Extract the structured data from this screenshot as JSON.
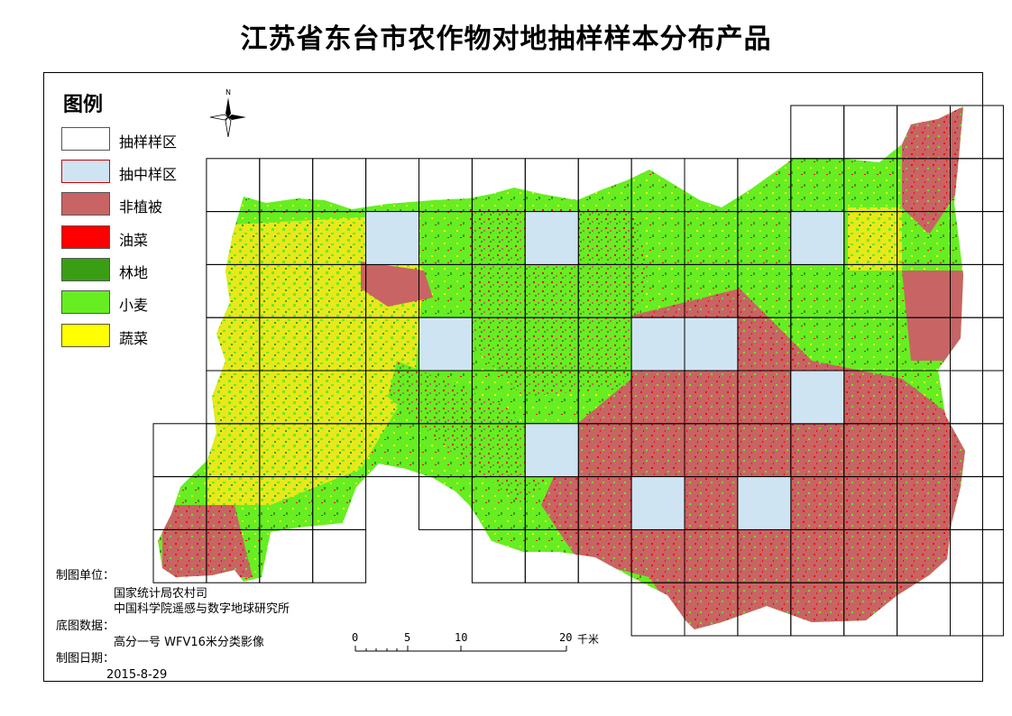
{
  "title": "江苏省东台市农作物对地抽样样本分布产品",
  "legend": {
    "heading": "图例",
    "items": [
      {
        "label": "抽样样区",
        "color": "#ffffff"
      },
      {
        "label": "抽中样区",
        "color": "#cfe4f2"
      },
      {
        "label": "非植被",
        "color": "#c86464"
      },
      {
        "label": "油菜",
        "color": "#ff0000"
      },
      {
        "label": "林地",
        "color": "#3a9e14"
      },
      {
        "label": "小麦",
        "color": "#66ee22"
      },
      {
        "label": "蔬菜",
        "color": "#ffff00"
      }
    ]
  },
  "compass": {
    "north_label": "N"
  },
  "credits": {
    "maker_label": "制图单位：",
    "maker_line1": "国家统计局农村司",
    "maker_line2": "中国科学院遥感与数字地球研究所",
    "base_label": "底图数据：",
    "base_value": "高分一号  WFV16米分类影像",
    "date_label": "制图日期：",
    "date_value": "2015-8-29"
  },
  "scale": {
    "ticks": [
      "0",
      "5",
      "10",
      "20"
    ],
    "unit": "千米"
  }
}
